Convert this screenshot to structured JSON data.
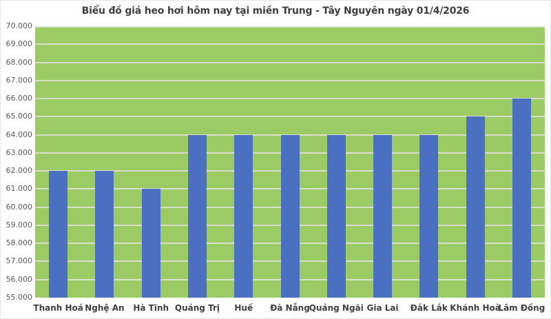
{
  "chart_data": {
    "type": "bar",
    "title": "Biểu đồ giá heo hơi hôm nay tại miền Trung - Tây Nguyên ngày 01/4/2026",
    "categories": [
      "Thanh Hoá",
      "Nghệ An",
      "Hà Tĩnh",
      "Quảng Trị",
      "Huế",
      "Đà Nẵng",
      "Quảng Ngãi",
      "Gia Lai",
      "Đắk Lắk",
      "Khánh Hoà",
      "Lâm Đồng"
    ],
    "values": [
      62000,
      62000,
      61000,
      64000,
      64000,
      64000,
      64000,
      64000,
      64000,
      65000,
      66000
    ],
    "xlabel": "",
    "ylabel": "",
    "ylim": [
      55000,
      70000
    ],
    "ytick_step": 1000,
    "ytick_labels": [
      "70.000",
      "69.000",
      "68.000",
      "67.000",
      "66.000",
      "65.000",
      "64.000",
      "63.000",
      "62.000",
      "61.000",
      "60.000",
      "59.000",
      "58.000",
      "57.000",
      "56.000",
      "55.000"
    ],
    "grid": true,
    "legend": "none",
    "colors": {
      "plot_background": "#9CCB66",
      "bar": "#4B70C1",
      "gridline": "#D9DFCC",
      "title_text": "#3F3F3F",
      "ytick_text": "#595959",
      "category_text": "#3F3F3F",
      "outer_background": "#FFFFFF",
      "border": "#E6E6E6"
    }
  }
}
